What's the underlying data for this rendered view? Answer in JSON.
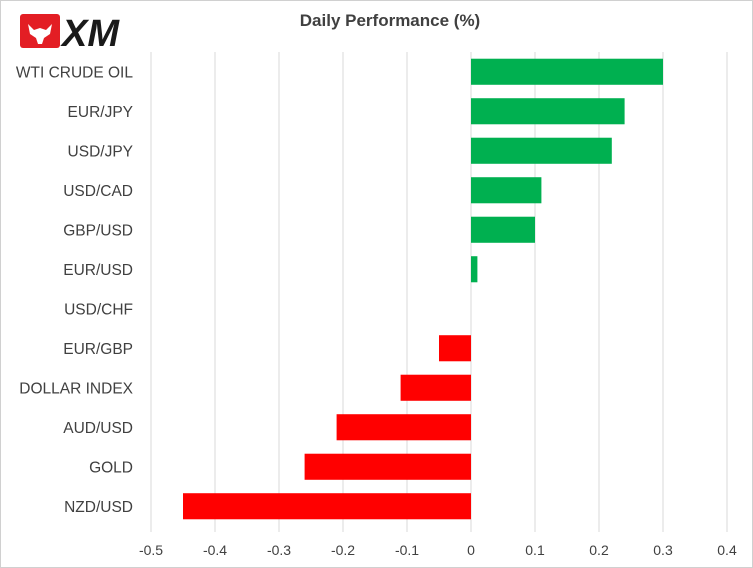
{
  "brand": {
    "logo_text": "XM",
    "logo_icon": "bull-icon",
    "logo_icon_color": "#e31e24"
  },
  "chart_data": {
    "type": "bar",
    "orientation": "horizontal",
    "title": "Daily Performance (%)",
    "categories": [
      "WTI CRUDE OIL",
      "EUR/JPY",
      "USD/JPY",
      "USD/CAD",
      "GBP/USD",
      "EUR/USD",
      "USD/CHF",
      "EUR/GBP",
      "DOLLAR INDEX",
      "AUD/USD",
      "GOLD",
      "NZD/USD"
    ],
    "values": [
      0.3,
      0.24,
      0.22,
      0.11,
      0.1,
      0.01,
      0,
      -0.05,
      -0.11,
      -0.21,
      -0.26,
      -0.45
    ],
    "xlim": [
      -0.5,
      0.4
    ],
    "xticks": [
      -0.5,
      -0.4,
      -0.3,
      -0.2,
      -0.1,
      0,
      0.1,
      0.2,
      0.3,
      0.4
    ],
    "xtick_labels": [
      "-0.5",
      "-0.4",
      "-0.3",
      "-0.2",
      "-0.1",
      "0",
      "0.1",
      "0.2",
      "0.3",
      "0.4"
    ],
    "grid": "vertical",
    "positive_color": "#00b050",
    "negative_color": "#ff0000",
    "gridline_color": "#d9d9d9",
    "xlabel": "",
    "ylabel": ""
  }
}
